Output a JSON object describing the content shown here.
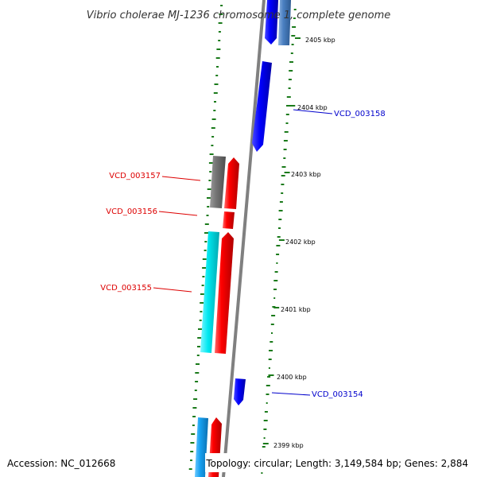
{
  "title": "Vibrio cholerae MJ-1236 chromosome 1, complete genome",
  "footer": {
    "accession": "Accession: NC_012668",
    "topology": "Topology: circular; Length: 3,149,584 bp; Genes: 2,884"
  },
  "ticks": [
    "2405 kbp",
    "2404 kbp",
    "2403 kbp",
    "2402 kbp",
    "2401 kbp",
    "2400 kbp",
    "2399 kbp"
  ],
  "gene_labels": [
    {
      "text": "VCD_003158",
      "strand": "forward"
    },
    {
      "text": "VCD_003157",
      "strand": "reverse"
    },
    {
      "text": "VCD_003156",
      "strand": "reverse"
    },
    {
      "text": "VCD_003155",
      "strand": "reverse"
    },
    {
      "text": "VCD_003154",
      "strand": "forward"
    }
  ],
  "colors": {
    "forward_label": "#0000cc",
    "reverse_label": "#dd0000",
    "backbone": "#808080",
    "gc_marks": "#1a7a1a",
    "red_feature": "#ee0000",
    "blue_feature": "#0000ee",
    "cyan_feature": "#00e5ee",
    "gray_feature": "#707070",
    "steel_feature": "#4a7fc1",
    "skyblue_feature": "#16a0f0"
  }
}
